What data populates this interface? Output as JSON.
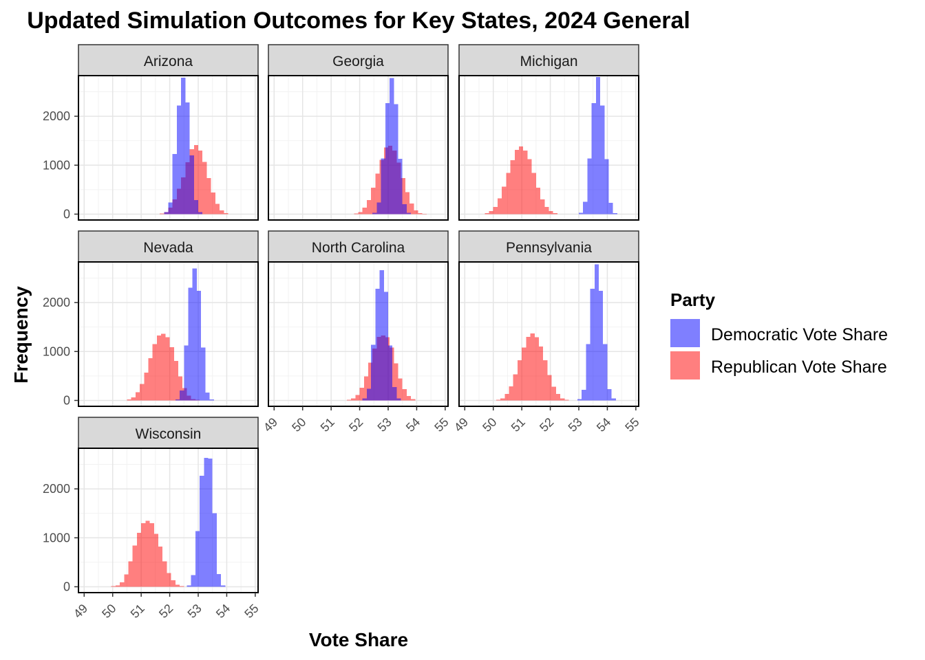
{
  "chart_data": {
    "type": "histogram-facets",
    "title": "Updated Simulation Outcomes for Key States, 2024 General",
    "xlabel": "Vote Share",
    "ylabel": "Frequency",
    "xlim": [
      48.8,
      55.1
    ],
    "ylim": [
      -120,
      2830
    ],
    "x_ticks": [
      49,
      50,
      51,
      52,
      53,
      54,
      55
    ],
    "y_ticks": [
      0,
      1000,
      2000
    ],
    "bin_width": 0.15,
    "grid": true,
    "legend": {
      "title": "Party",
      "position": "right",
      "entries": [
        {
          "label": "Democratic Vote Share",
          "color": "#0000FF",
          "alpha": 0.5
        },
        {
          "label": "Republican Vote Share",
          "color": "#FF0000",
          "alpha": 0.5
        }
      ]
    },
    "facets": [
      {
        "name": "Arizona",
        "dem": {
          "start": 51.8,
          "counts": [
            40,
            240,
            1230,
            2220,
            2790,
            2280,
            1200,
            290,
            40
          ]
        },
        "rep": {
          "start": 51.65,
          "counts": [
            10,
            40,
            130,
            300,
            520,
            750,
            1060,
            1330,
            1410,
            1300,
            1070,
            740,
            440,
            210,
            80,
            20
          ]
        }
      },
      {
        "name": "Georgia",
        "dem": {
          "start": 52.45,
          "counts": [
            30,
            240,
            1140,
            2270,
            2780,
            2250,
            1130,
            200,
            30
          ]
        },
        "rep": {
          "start": 51.8,
          "counts": [
            10,
            40,
            130,
            290,
            540,
            830,
            1110,
            1360,
            1400,
            1300,
            1050,
            740,
            450,
            220,
            80,
            20,
            5
          ]
        }
      },
      {
        "name": "Michigan",
        "dem": {
          "start": 53.0,
          "counts": [
            30,
            250,
            1140,
            2270,
            2800,
            2220,
            1120,
            230,
            20
          ]
        },
        "rep": {
          "start": 49.7,
          "counts": [
            20,
            60,
            150,
            320,
            560,
            840,
            1100,
            1310,
            1380,
            1300,
            1120,
            840,
            540,
            300,
            150,
            60,
            20
          ]
        }
      },
      {
        "name": "Nevada",
        "dem": {
          "start": 52.2,
          "counts": [
            20,
            200,
            1120,
            2300,
            2700,
            2240,
            1080,
            160,
            20
          ]
        },
        "rep": {
          "start": 50.5,
          "counts": [
            20,
            60,
            170,
            340,
            570,
            860,
            1150,
            1330,
            1360,
            1290,
            1090,
            810,
            490,
            250,
            100,
            30,
            10
          ]
        }
      },
      {
        "name": "North Carolina",
        "dem": {
          "start": 52.1,
          "counts": [
            40,
            240,
            1140,
            2280,
            2660,
            2220,
            1120,
            270,
            40
          ]
        },
        "rep": {
          "start": 51.55,
          "counts": [
            10,
            40,
            110,
            260,
            490,
            770,
            1060,
            1300,
            1330,
            1290,
            1080,
            760,
            450,
            230,
            90,
            25
          ]
        }
      },
      {
        "name": "Pennsylvania",
        "dem": {
          "start": 52.95,
          "counts": [
            30,
            220,
            1150,
            2280,
            2780,
            2240,
            1150,
            230,
            40
          ]
        },
        "rep": {
          "start": 50.1,
          "counts": [
            10,
            40,
            130,
            290,
            530,
            820,
            1080,
            1300,
            1370,
            1290,
            1100,
            820,
            520,
            280,
            130,
            40,
            10
          ]
        }
      },
      {
        "name": "Wisconsin",
        "dem": {
          "start": 52.6,
          "counts": [
            30,
            240,
            1140,
            2270,
            2630,
            2620,
            1500,
            260,
            30
          ]
        },
        "rep": {
          "start": 49.95,
          "counts": [
            10,
            30,
            90,
            250,
            520,
            840,
            1100,
            1300,
            1350,
            1300,
            1080,
            820,
            520,
            280,
            130,
            40,
            10
          ]
        }
      }
    ]
  }
}
